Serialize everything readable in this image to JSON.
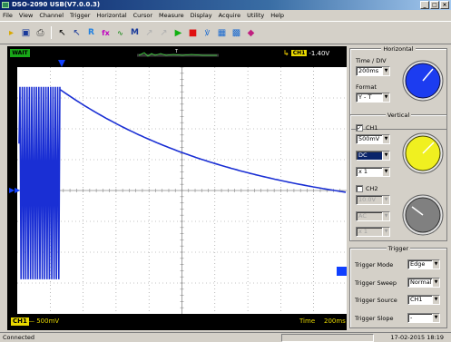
{
  "window": {
    "title": "DSO-2090 USB(V7.0.0.3)"
  },
  "menu": [
    "File",
    "View",
    "Channel",
    "Trigger",
    "Horizontal",
    "Cursor",
    "Measure",
    "Display",
    "Acquire",
    "Utility",
    "Help"
  ],
  "scope": {
    "status": "WAIT",
    "trigger_channel": "CH1",
    "trigger_level": "-1.40V",
    "ch1_badge": "CH1",
    "ch1_volts_div": "— 500mV",
    "time_label": "Time",
    "time_div": "200ms",
    "colors": {
      "trace": "#1a2fd4",
      "grid": "#8a8a8a",
      "badge": "#e8d800",
      "status_badge": "#18a818"
    }
  },
  "horizontal": {
    "title": "Horizontal",
    "time_div_label": "Time / DIV",
    "time_div_value": "200ms",
    "format_label": "Format",
    "format_value": "Y - T",
    "knob_color": "#1c3cf0"
  },
  "vertical": {
    "title": "Vertical",
    "ch1_label": "CH1",
    "ch1_checked": true,
    "ch1_volts": "500mV",
    "ch1_coupling": "DC",
    "ch1_probe": "x 1",
    "ch1_knob_color": "#f0f020",
    "ch2_label": "CH2",
    "ch2_checked": false,
    "ch2_volts": "10.0V",
    "ch2_coupling": "AC",
    "ch2_probe": "x 1",
    "ch2_knob_color": "#808080"
  },
  "trigger": {
    "title": "Trigger",
    "mode_label": "Trigger Mode",
    "mode_value": "Edge",
    "sweep_label": "Trigger Sweep",
    "sweep_value": "Normal",
    "source_label": "Trigger Source",
    "source_value": "CH1",
    "slope_label": "Trigger Slope",
    "slope_value": "-"
  },
  "statusbar": {
    "left": "Connected",
    "datetime": "17-02-2015  18:19"
  }
}
